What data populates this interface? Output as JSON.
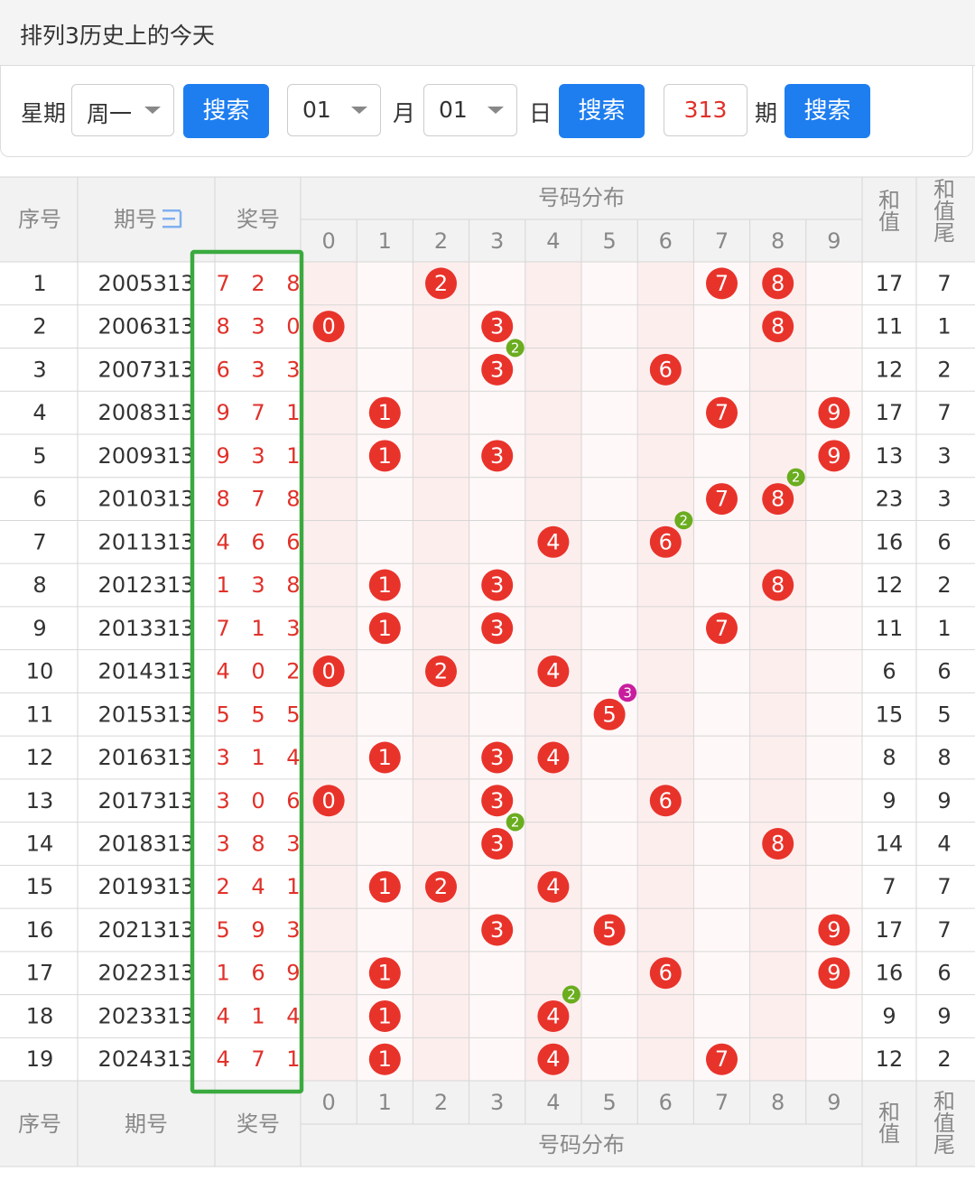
{
  "title": "排列3历史上的今天",
  "filters": {
    "weekday_label": "星期",
    "weekday_value": "周一",
    "search_label": "搜索",
    "month_value": "01",
    "month_label": "月",
    "day_value": "01",
    "day_label": "日",
    "period_value": "313",
    "period_label": "期"
  },
  "table": {
    "col_index": "序号",
    "col_period": "期号",
    "sort_icon": "sort-icon",
    "col_award": "奖号",
    "col_dist": "号码分布",
    "col_sum": "和值",
    "col_tail": "和值尾",
    "digits": [
      "0",
      "1",
      "2",
      "3",
      "4",
      "5",
      "6",
      "7",
      "8",
      "9"
    ],
    "rows": [
      {
        "no": "1",
        "period": "2005313",
        "award": "728",
        "sum": "17",
        "tail": "7"
      },
      {
        "no": "2",
        "period": "2006313",
        "award": "830",
        "sum": "11",
        "tail": "1"
      },
      {
        "no": "3",
        "period": "2007313",
        "award": "633",
        "sum": "12",
        "tail": "2"
      },
      {
        "no": "4",
        "period": "2008313",
        "award": "971",
        "sum": "17",
        "tail": "7"
      },
      {
        "no": "5",
        "period": "2009313",
        "award": "931",
        "sum": "13",
        "tail": "3"
      },
      {
        "no": "6",
        "period": "2010313",
        "award": "878",
        "sum": "23",
        "tail": "3"
      },
      {
        "no": "7",
        "period": "2011313",
        "award": "466",
        "sum": "16",
        "tail": "6"
      },
      {
        "no": "8",
        "period": "2012313",
        "award": "138",
        "sum": "12",
        "tail": "2"
      },
      {
        "no": "9",
        "period": "2013313",
        "award": "713",
        "sum": "11",
        "tail": "1"
      },
      {
        "no": "10",
        "period": "2014313",
        "award": "402",
        "sum": "6",
        "tail": "6"
      },
      {
        "no": "11",
        "period": "2015313",
        "award": "555",
        "sum": "15",
        "tail": "5"
      },
      {
        "no": "12",
        "period": "2016313",
        "award": "314",
        "sum": "8",
        "tail": "8"
      },
      {
        "no": "13",
        "period": "2017313",
        "award": "306",
        "sum": "9",
        "tail": "9"
      },
      {
        "no": "14",
        "period": "2018313",
        "award": "383",
        "sum": "14",
        "tail": "4"
      },
      {
        "no": "15",
        "period": "2019313",
        "award": "241",
        "sum": "7",
        "tail": "7"
      },
      {
        "no": "16",
        "period": "2021313",
        "award": "593",
        "sum": "17",
        "tail": "7"
      },
      {
        "no": "17",
        "period": "2022313",
        "award": "169",
        "sum": "16",
        "tail": "6"
      },
      {
        "no": "18",
        "period": "2023313",
        "award": "414",
        "sum": "9",
        "tail": "9"
      },
      {
        "no": "19",
        "period": "2024313",
        "award": "471",
        "sum": "12",
        "tail": "2"
      }
    ]
  },
  "colors": {
    "ball": "#e8332b",
    "repeat2": "#6aad1f",
    "repeat3": "#c81e9e",
    "highlight": "#3aaa3f",
    "accent": "#1e7ef0",
    "sort_icon_color": "#7fb0f0"
  }
}
